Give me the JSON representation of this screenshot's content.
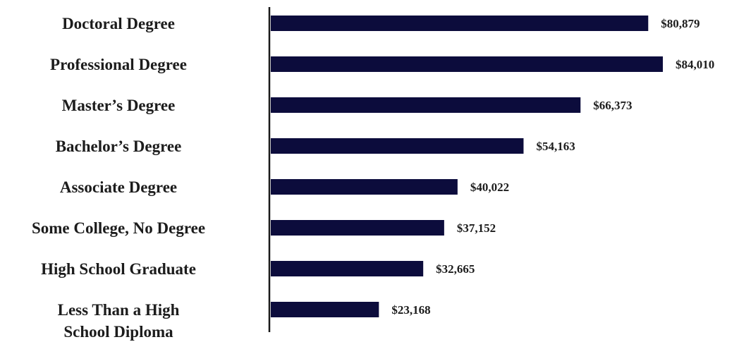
{
  "chart_data": {
    "type": "bar",
    "orientation": "horizontal",
    "categories": [
      [
        "Doctoral Degree"
      ],
      [
        "Professional Degree"
      ],
      [
        "Master’s Degree"
      ],
      [
        "Bachelor’s Degree"
      ],
      [
        "Associate Degree"
      ],
      [
        "Some College, No Degree"
      ],
      [
        "High School Graduate"
      ],
      [
        "Less Than a High",
        "School Diploma"
      ]
    ],
    "values": [
      80879,
      84010,
      66373,
      54163,
      40022,
      37152,
      32665,
      23168
    ],
    "value_labels": [
      "$80,879",
      "$84,010",
      "$66,373",
      "$54,163",
      "$40,022",
      "$37,152",
      "$32,665",
      "$23,168"
    ],
    "xlim": [
      0,
      84010
    ],
    "bar_color": "#0c0c3c",
    "axis_color": "#1a1a1a",
    "grid": false,
    "legend": false,
    "title": "",
    "xlabel": "",
    "ylabel": ""
  }
}
